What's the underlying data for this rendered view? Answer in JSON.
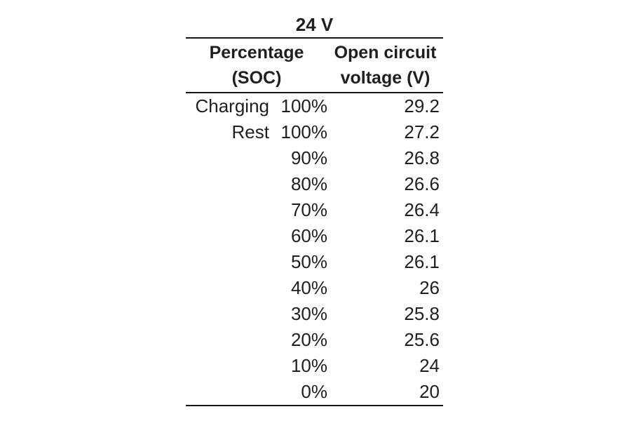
{
  "colors": {
    "background": "#ffffff",
    "text": "#1f1f1f",
    "rule": "#161616"
  },
  "table": {
    "title": "24 V",
    "columns": [
      {
        "line1": "Percentage",
        "line2": "(SOC)"
      },
      {
        "line1": "Open circuit",
        "line2": "voltage (V)"
      }
    ],
    "rows": [
      {
        "prefix": "Charging",
        "soc": "100%",
        "voltage": "29.2"
      },
      {
        "prefix": "Rest",
        "soc": "100%",
        "voltage": "27.2"
      },
      {
        "prefix": "",
        "soc": "90%",
        "voltage": "26.8"
      },
      {
        "prefix": "",
        "soc": "80%",
        "voltage": "26.6"
      },
      {
        "prefix": "",
        "soc": "70%",
        "voltage": "26.4"
      },
      {
        "prefix": "",
        "soc": "60%",
        "voltage": "26.1"
      },
      {
        "prefix": "",
        "soc": "50%",
        "voltage": "26.1"
      },
      {
        "prefix": "",
        "soc": "40%",
        "voltage": "26"
      },
      {
        "prefix": "",
        "soc": "30%",
        "voltage": "25.8"
      },
      {
        "prefix": "",
        "soc": "20%",
        "voltage": "25.6"
      },
      {
        "prefix": "",
        "soc": "10%",
        "voltage": "24"
      },
      {
        "prefix": "",
        "soc": "0%",
        "voltage": "20"
      }
    ]
  },
  "chart_data": {
    "type": "table",
    "title": "24 V",
    "columns": [
      "Percentage (SOC)",
      "Open circuit voltage (V)"
    ],
    "rows": [
      [
        "Charging 100%",
        29.2
      ],
      [
        "Rest 100%",
        27.2
      ],
      [
        "90%",
        26.8
      ],
      [
        "80%",
        26.6
      ],
      [
        "70%",
        26.4
      ],
      [
        "60%",
        26.1
      ],
      [
        "50%",
        26.1
      ],
      [
        "40%",
        26
      ],
      [
        "30%",
        25.8
      ],
      [
        "20%",
        25.6
      ],
      [
        "10%",
        24
      ],
      [
        "0%",
        20
      ]
    ]
  }
}
